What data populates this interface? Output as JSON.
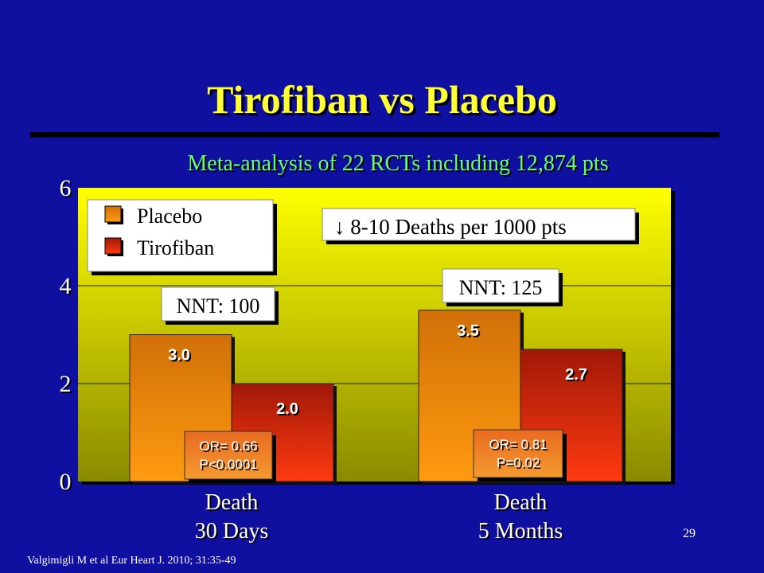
{
  "slide": {
    "title": "Tirofiban vs Placebo",
    "subtitle": "Meta-analysis of 22 RCTs including 12,874 pts",
    "page_number": "29",
    "citation": "Valgimigli M et al Eur Heart J. 2010; 31:35-49"
  },
  "colors": {
    "background": "#1010a0",
    "title": "#ffff33",
    "subtitle": "#66ff66",
    "plot_bg_top": "#ffff00",
    "plot_bg_bottom": "#888800",
    "placebo": "#e8800a",
    "tirofiban": "#e83010"
  },
  "chart_data": {
    "type": "bar",
    "categories": [
      "Death\n30 Days",
      "Death\n5 Months"
    ],
    "series": [
      {
        "name": "Placebo",
        "values": [
          3.0,
          3.5
        ],
        "labels": [
          "3.0",
          "3.5"
        ]
      },
      {
        "name": "Tirofiban",
        "values": [
          2.0,
          2.7
        ],
        "labels": [
          "2.0",
          "2.7"
        ]
      }
    ],
    "ylim": [
      0,
      6
    ],
    "yticks": [
      "0",
      "2",
      "4",
      "6"
    ],
    "grid": true,
    "legend_position": "top-left",
    "annotations": {
      "deaths_note": "↓ 8-10 Deaths per 1000 pts",
      "nnt": [
        "NNT: 100",
        "NNT: 125"
      ],
      "odds_ratio": [
        [
          "OR= 0.66",
          "P<0.0001"
        ],
        [
          "OR= 0.81",
          "P=0.02"
        ]
      ]
    }
  }
}
